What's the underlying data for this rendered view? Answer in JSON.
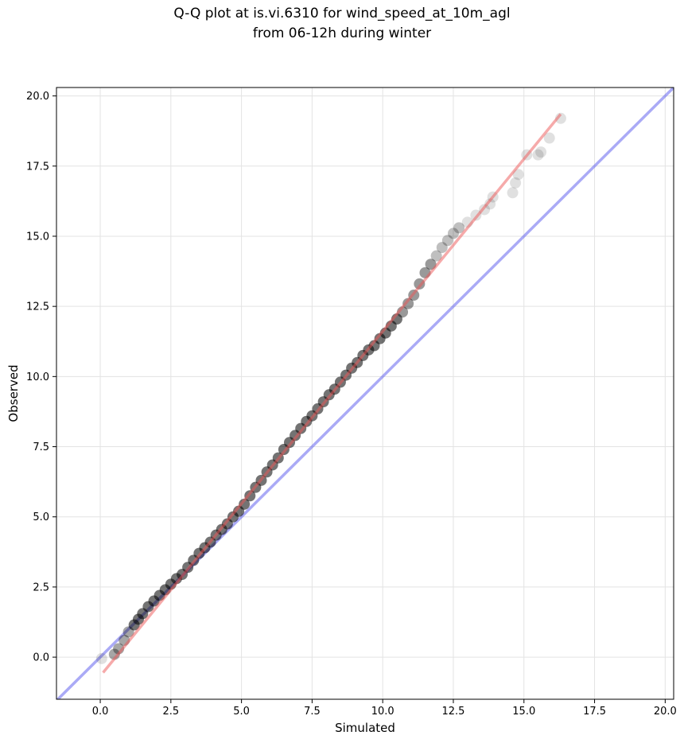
{
  "chart_data": {
    "type": "scatter",
    "title_line1": "Q-Q plot at is.vi.6310 for wind_speed_at_10m_agl",
    "title_line2": "from 06-12h during winter",
    "xlabel": "Simulated",
    "ylabel": "Observed",
    "xlim": [
      -1.55,
      20.3
    ],
    "ylim": [
      -1.5,
      20.3
    ],
    "xticks": [
      "0.0",
      "2.5",
      "5.0",
      "7.5",
      "10.0",
      "12.5",
      "15.0",
      "17.5",
      "20.0"
    ],
    "yticks": [
      "0.0",
      "2.5",
      "5.0",
      "7.5",
      "10.0",
      "12.5",
      "15.0",
      "17.5",
      "20.0"
    ],
    "grid": true,
    "reference_line": {
      "from": [
        -1.55,
        -1.55
      ],
      "to": [
        20.3,
        20.3
      ],
      "color": "#5555ee"
    },
    "fit_line": {
      "from": [
        0.1,
        -0.55
      ],
      "to": [
        16.3,
        19.35
      ],
      "color": "#ee5555"
    },
    "colors": {
      "points": "#000000",
      "reference": "#5555ee",
      "fit": "#ee5555"
    },
    "series": [
      {
        "x": [
          0.05,
          0.5,
          0.65,
          0.85,
          1.0,
          1.2,
          1.35,
          1.5,
          1.7,
          1.9,
          2.1,
          2.3,
          2.5,
          2.7,
          2.9,
          3.1,
          3.3,
          3.5,
          3.7,
          3.9,
          4.1,
          4.3,
          4.5,
          4.7,
          4.9,
          5.1,
          5.3,
          5.5,
          5.7,
          5.9,
          6.1,
          6.3,
          6.5,
          6.7,
          6.9,
          7.1,
          7.3,
          7.5,
          7.7,
          7.9,
          8.1,
          8.3,
          8.5,
          8.7,
          8.9,
          9.1,
          9.3,
          9.5,
          9.7,
          9.9,
          10.1,
          10.3,
          10.5,
          10.7,
          10.9,
          11.1,
          11.3,
          11.5,
          11.7,
          11.9,
          12.1,
          12.3,
          12.5,
          12.7,
          13.0,
          13.3,
          13.6,
          13.8,
          13.9,
          14.6,
          14.7,
          14.8,
          15.1,
          15.5,
          15.6,
          15.9,
          16.3
        ],
        "y": [
          -0.05,
          0.1,
          0.3,
          0.6,
          0.9,
          1.15,
          1.35,
          1.55,
          1.8,
          2.0,
          2.2,
          2.4,
          2.6,
          2.8,
          2.95,
          3.2,
          3.45,
          3.7,
          3.9,
          4.1,
          4.35,
          4.55,
          4.75,
          5.0,
          5.2,
          5.45,
          5.75,
          6.05,
          6.3,
          6.6,
          6.85,
          7.1,
          7.4,
          7.65,
          7.9,
          8.15,
          8.4,
          8.6,
          8.85,
          9.1,
          9.35,
          9.55,
          9.8,
          10.05,
          10.3,
          10.5,
          10.75,
          10.95,
          11.1,
          11.35,
          11.55,
          11.8,
          12.05,
          12.3,
          12.6,
          12.9,
          13.3,
          13.7,
          14.0,
          14.3,
          14.6,
          14.85,
          15.1,
          15.3,
          15.5,
          15.75,
          15.95,
          16.15,
          16.4,
          16.55,
          16.9,
          17.2,
          17.9,
          17.9,
          18.0,
          18.5,
          19.2
        ]
      }
    ]
  }
}
